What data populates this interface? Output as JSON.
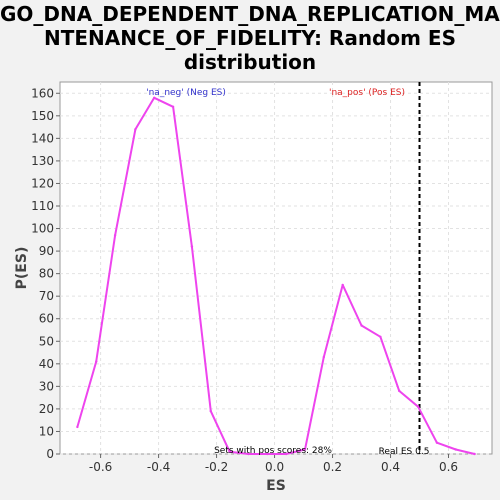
{
  "chart_data": {
    "type": "line",
    "title_lines": [
      "GO_DNA_DEPENDENT_DNA_REPLICATION_MAI",
      "NTENANCE_OF_FIDELITY: Random ES",
      "distribution"
    ],
    "xlabel": "ES",
    "ylabel": "P(ES)",
    "xlim": [
      -0.74,
      0.75
    ],
    "ylim": [
      0,
      165
    ],
    "x_ticks": [
      -0.6,
      -0.4,
      -0.2,
      0.0,
      0.2,
      0.4,
      0.6
    ],
    "x_tick_labels": [
      "-0.6",
      "-0.4",
      "-0.2",
      "0.0",
      "0.2",
      "0.4",
      "0.6"
    ],
    "y_ticks": [
      0,
      10,
      20,
      30,
      40,
      50,
      60,
      70,
      80,
      90,
      100,
      110,
      120,
      130,
      140,
      150,
      160
    ],
    "y_tick_labels": [
      "0",
      "10",
      "20",
      "30",
      "40",
      "50",
      "60",
      "70",
      "80",
      "90",
      "100",
      "110",
      "120",
      "130",
      "140",
      "150",
      "160"
    ],
    "grid": true,
    "series": [
      {
        "color": "#ee44ee",
        "x": [
          -0.68,
          -0.615,
          -0.55,
          -0.48,
          -0.415,
          -0.35,
          -0.285,
          -0.22,
          -0.155,
          -0.09,
          -0.025,
          0.04,
          0.105,
          0.17,
          0.235,
          0.3,
          0.365,
          0.43,
          0.495,
          0.56,
          0.625,
          0.69
        ],
        "y": [
          12,
          41,
          97,
          144,
          158,
          154,
          92,
          19,
          1,
          0,
          0,
          0,
          2,
          43,
          75,
          57,
          52,
          28,
          21,
          5,
          2,
          0
        ]
      }
    ],
    "real_es": {
      "x": 0.5,
      "color": "#000000"
    },
    "annotations": {
      "neg": {
        "text": "'na_neg' (Neg ES)",
        "color": "#3333cc"
      },
      "pos": {
        "text": "'na_pos' (Pos ES)",
        "color": "#dd2222"
      },
      "sets_with_pos": "Sets with pos scores: 28%",
      "real_es_label": "Real ES 0.5"
    }
  }
}
